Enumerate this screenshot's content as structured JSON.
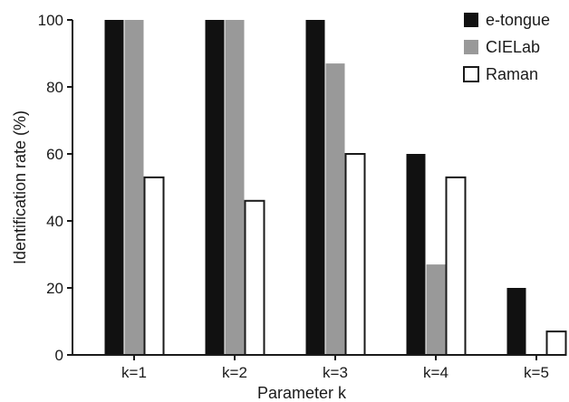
{
  "chart_data": {
    "type": "bar",
    "title": "",
    "xlabel": "Parameter k",
    "ylabel": "Identification rate (%)",
    "ylim": [
      0,
      100
    ],
    "yticks": [
      0,
      20,
      40,
      60,
      80,
      100
    ],
    "categories": [
      "k=1",
      "k=2",
      "k=3",
      "k=4",
      "k=5"
    ],
    "series": [
      {
        "name": "e-tongue",
        "color": "#111111",
        "values": [
          100,
          100,
          100,
          60,
          20
        ]
      },
      {
        "name": "CIELab",
        "color": "#999999",
        "values": [
          100,
          100,
          87,
          27,
          0
        ]
      },
      {
        "name": "Raman",
        "color": "#ffffff",
        "values": [
          53,
          46,
          60,
          53,
          7
        ]
      }
    ],
    "grid": false,
    "legend_position": "top-right"
  }
}
